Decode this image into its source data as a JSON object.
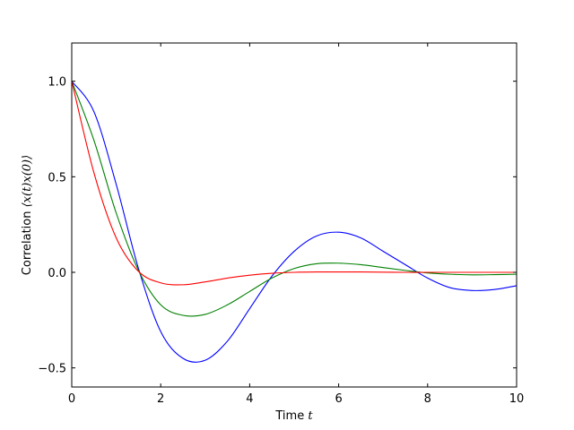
{
  "chart_data": {
    "type": "line",
    "xlabel": "Time",
    "xlabel_math": "t",
    "ylabel": "Correlation",
    "ylabel_math": "⟨x(t)x(0)⟩",
    "xlim": [
      0,
      10
    ],
    "ylim": [
      -0.6,
      1.2
    ],
    "xticks": [
      0,
      2,
      4,
      6,
      8,
      10
    ],
    "xtick_labels": [
      "0",
      "2",
      "4",
      "6",
      "8",
      "10"
    ],
    "yticks": [
      -0.5,
      0.0,
      0.5,
      1.0
    ],
    "ytick_labels": [
      "−0.5",
      "0.0",
      "0.5",
      "1.0"
    ],
    "grid": false,
    "legend": "none",
    "series": [
      {
        "color": "#0000ff",
        "x": [
          0,
          0.5,
          1,
          1.5,
          2,
          2.5,
          3,
          3.5,
          4,
          4.5,
          5,
          5.5,
          6,
          6.5,
          7,
          7.5,
          8,
          8.5,
          9,
          9.5,
          10
        ],
        "y": [
          1.0,
          0.84,
          0.46,
          0.02,
          -0.31,
          -0.45,
          -0.46,
          -0.36,
          -0.19,
          -0.02,
          0.11,
          0.19,
          0.21,
          0.18,
          0.11,
          0.04,
          -0.03,
          -0.08,
          -0.095,
          -0.09,
          -0.07
        ]
      },
      {
        "color": "#008000",
        "x": [
          0,
          0.5,
          1,
          1.5,
          2,
          2.5,
          3,
          3.5,
          4,
          4.5,
          5,
          5.5,
          6,
          6.5,
          7,
          7.5,
          8,
          8.5,
          9,
          9.5,
          10
        ],
        "y": [
          1.0,
          0.69,
          0.31,
          0.01,
          -0.17,
          -0.225,
          -0.22,
          -0.17,
          -0.1,
          -0.03,
          0.02,
          0.045,
          0.048,
          0.04,
          0.025,
          0.01,
          -0.003,
          -0.01,
          -0.013,
          -0.012,
          -0.01
        ]
      },
      {
        "color": "#ff0000",
        "x": [
          0,
          0.5,
          1,
          1.5,
          2,
          2.5,
          3,
          3.5,
          4,
          4.5,
          5,
          5.5,
          6,
          6.5,
          7,
          7.5,
          8,
          8.5,
          9,
          9.5,
          10
        ],
        "y": [
          1.0,
          0.52,
          0.18,
          0.005,
          -0.055,
          -0.065,
          -0.05,
          -0.03,
          -0.015,
          -0.005,
          0.0,
          0.002,
          0.002,
          0.002,
          0.001,
          0.0,
          0.0,
          0.0,
          0.0,
          0.0,
          0.0
        ]
      }
    ]
  }
}
